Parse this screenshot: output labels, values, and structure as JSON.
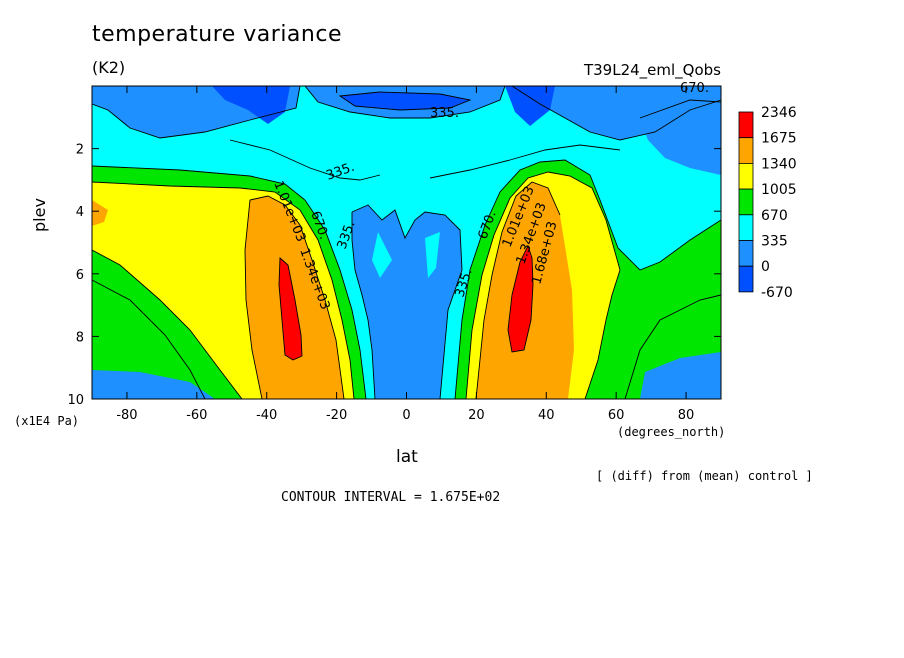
{
  "chart_data": {
    "type": "contour",
    "title": "temperature variance",
    "units": "(K2)",
    "run_label": "T39L24_eml_Qobs",
    "xlabel": "lat",
    "x_units": "(degrees_north)",
    "ylabel": "plev",
    "y_units": "(x1E4 Pa)",
    "x_ticks": [
      "-80",
      "-60",
      "-40",
      "-20",
      "0",
      "20",
      "40",
      "60",
      "80"
    ],
    "y_ticks": [
      "2",
      "4",
      "6",
      "8",
      "10"
    ],
    "xlim": [
      -90,
      90
    ],
    "ylim": [
      10,
      0
    ],
    "colorbar_levels": [
      "2346",
      "1675",
      "1340",
      "1005",
      "670",
      "335",
      "0",
      "-670"
    ],
    "colorbar_colors": [
      "#ff0000",
      "#ffa500",
      "#ffff00",
      "#00e600",
      "#00ffff",
      "#1e90ff",
      "#0050ff"
    ],
    "contour_labels": [
      "335.",
      "335.",
      "335.",
      "335.",
      "670.",
      "670.",
      "670.",
      "1.01e+03",
      "1.34e+03",
      "1.01e+03",
      "1.34e+03",
      "1.68e+03"
    ],
    "footer_note": "[ (diff) from (mean) control ]",
    "contour_interval": "CONTOUR INTERVAL = 1.675E+02"
  }
}
